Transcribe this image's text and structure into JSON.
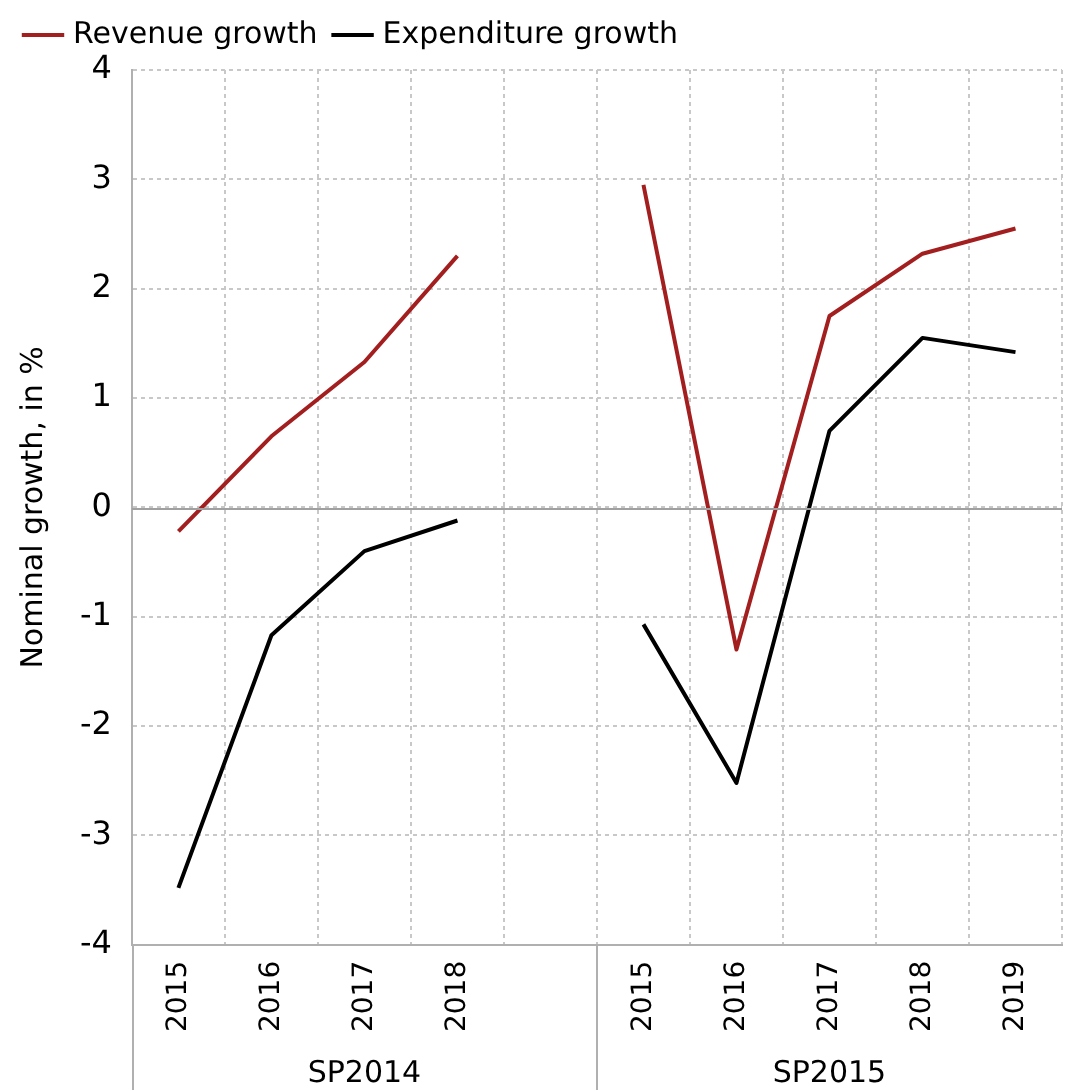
{
  "chart_data": {
    "type": "line",
    "ylabel": "Nominal growth, in %",
    "categories": [
      "2015",
      "2016",
      "2017",
      "2018",
      null,
      "2015",
      "2016",
      "2017",
      "2018",
      "2019"
    ],
    "series": [
      {
        "name": "Revenue growth",
        "color": "#a31f1f",
        "values": [
          -0.22,
          0.65,
          1.33,
          2.3,
          null,
          2.95,
          -1.3,
          1.75,
          2.32,
          2.55
        ]
      },
      {
        "name": "Expenditure growth",
        "color": "#000000",
        "values": [
          -3.48,
          -1.17,
          -0.4,
          -0.12,
          null,
          -1.07,
          -2.52,
          0.7,
          1.55,
          1.42
        ]
      }
    ],
    "ylim": [
      -4,
      4
    ],
    "yticks": [
      -4,
      -3,
      -2,
      -1,
      0,
      1,
      2,
      3,
      4
    ],
    "grid": true,
    "legend": "top",
    "marker": "none",
    "line_style": "solid",
    "ref_lines": [
      {
        "axis": "y",
        "value": 0,
        "color": "#a0a0a0",
        "line_style": "solid"
      }
    ],
    "annotations": [
      "SP2014",
      "SP2015"
    ]
  }
}
